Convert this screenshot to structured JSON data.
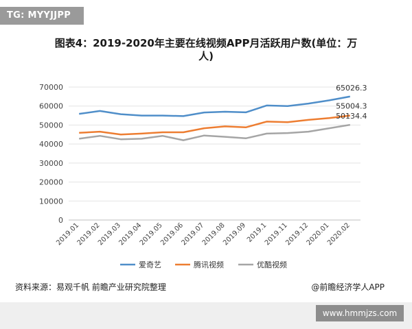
{
  "tag": "TG: MYYJJPP",
  "footer": {
    "source": "资料来源：易观千帆 前瞻产业研究院整理",
    "credit": "@前瞻经济学人APP",
    "site": "www.hmmjzs.com"
  },
  "chart_data": {
    "type": "line",
    "title": "图表4：2019-2020年主要在线视频APP月活跃用户数(单位：万人)",
    "title_line1": "图表4：2019-2020年主要在线视频APP月活跃用户数(单位：万",
    "title_line2": "人)",
    "categories": [
      "2019.01",
      "2019.02",
      "2019.03",
      "2019.04",
      "2019.05",
      "2019.06",
      "2019.07",
      "2019.08",
      "2019.09",
      "2019.1",
      "2019.11",
      "2019.12",
      "2020.01",
      "2020.02"
    ],
    "ylim": [
      0,
      70000
    ],
    "yticks": [
      0,
      10000,
      20000,
      30000,
      40000,
      50000,
      60000,
      70000
    ],
    "grid": true,
    "legend_position": "bottom",
    "series": [
      {
        "name": "爱奇艺",
        "color": "#4f8ec9",
        "values": [
          55900,
          57400,
          55700,
          55000,
          55000,
          54700,
          56600,
          57000,
          56700,
          60300,
          60000,
          61300,
          63000,
          65026.3
        ],
        "end_label": "65026.3"
      },
      {
        "name": "腾讯视频",
        "color": "#ed7d31",
        "values": [
          45900,
          46500,
          45000,
          45500,
          46200,
          46200,
          48300,
          49300,
          48800,
          51800,
          51500,
          52700,
          53700,
          55004.3
        ],
        "end_label": "55004.3"
      },
      {
        "name": "优酷视频",
        "color": "#a5a5a5",
        "values": [
          42800,
          44300,
          42500,
          42800,
          44300,
          42000,
          44500,
          43800,
          43000,
          45500,
          45800,
          46500,
          48300,
          50134.4
        ],
        "end_label": "50134.4"
      }
    ]
  }
}
